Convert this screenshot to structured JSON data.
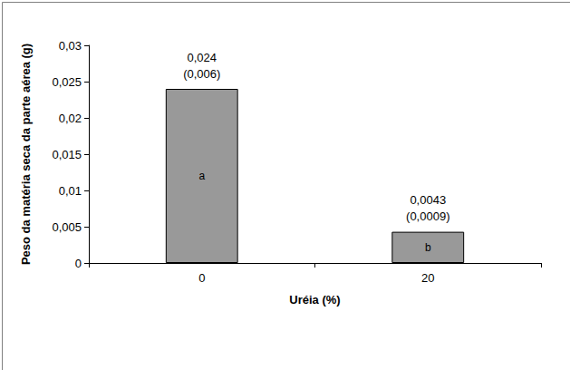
{
  "chart_data": {
    "type": "bar",
    "x_label": "Uréia (%)",
    "y_label": "Peso da matéria seca da parte aérea (g)",
    "categories": [
      "0",
      "20"
    ],
    "values": [
      0.024,
      0.0043
    ],
    "value_labels": [
      "0,024",
      "0,0043"
    ],
    "sd_labels": [
      "(0,006)",
      "(0,0009)"
    ],
    "group_letters": [
      "a",
      "b"
    ],
    "color": "#999999",
    "ylim": [
      0,
      0.03
    ],
    "yticks": [
      0,
      {
        "value": 0.005,
        "label": "0,005"
      },
      {
        "value": 0.01,
        "label": "0,01"
      },
      {
        "value": 0.015,
        "label": "0,015"
      },
      {
        "value": 0.02,
        "label": "0,02"
      },
      {
        "value": 0.025,
        "label": "0,025"
      },
      {
        "value": 0.03,
        "label": "0,03"
      }
    ],
    "grid": false,
    "data_labels": true
  }
}
